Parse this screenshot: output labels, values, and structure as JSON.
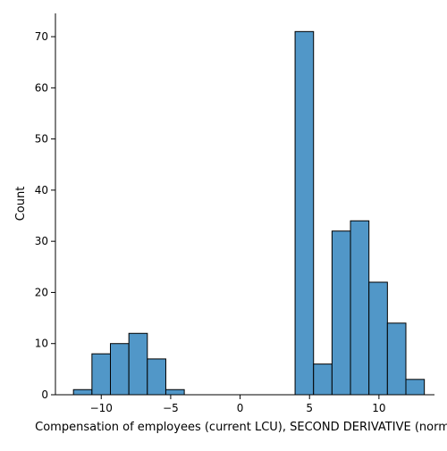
{
  "chart_data": {
    "type": "bar",
    "subtype": "histogram",
    "xlabel": "Compensation of employees (current LCU), SECOND DERIVATIVE (norma",
    "ylabel": "Count",
    "bin_width": 1.33,
    "bins": [
      {
        "x_start": -12.0,
        "count": 1
      },
      {
        "x_start": -10.67,
        "count": 8
      },
      {
        "x_start": -9.34,
        "count": 10
      },
      {
        "x_start": -8.01,
        "count": 12
      },
      {
        "x_start": -6.68,
        "count": 7
      },
      {
        "x_start": -5.35,
        "count": 1
      },
      {
        "x_start": -4.02,
        "count": 0
      },
      {
        "x_start": -2.69,
        "count": 0
      },
      {
        "x_start": -1.36,
        "count": 0
      },
      {
        "x_start": -0.03,
        "count": 0
      },
      {
        "x_start": 1.3,
        "count": 0
      },
      {
        "x_start": 2.63,
        "count": 0
      },
      {
        "x_start": 3.96,
        "count": 71
      },
      {
        "x_start": 5.29,
        "count": 6
      },
      {
        "x_start": 6.62,
        "count": 32
      },
      {
        "x_start": 7.95,
        "count": 34
      },
      {
        "x_start": 9.28,
        "count": 22
      },
      {
        "x_start": 10.61,
        "count": 14
      },
      {
        "x_start": 11.94,
        "count": 3
      }
    ],
    "xlim": [
      -13.3,
      14.0
    ],
    "ylim": [
      0,
      74.55
    ],
    "xticks": [
      -10,
      -5,
      0,
      5,
      10
    ],
    "xtick_labels": [
      "−10",
      "−5",
      "0",
      "5",
      "10"
    ],
    "yticks": [
      0,
      10,
      20,
      30,
      40,
      50,
      60,
      70
    ],
    "ytick_labels": [
      "0",
      "10",
      "20",
      "30",
      "40",
      "50",
      "60",
      "70"
    ],
    "bar_color": "#5197c8",
    "edge_color": "#000000",
    "grid": false,
    "legend": "none"
  }
}
